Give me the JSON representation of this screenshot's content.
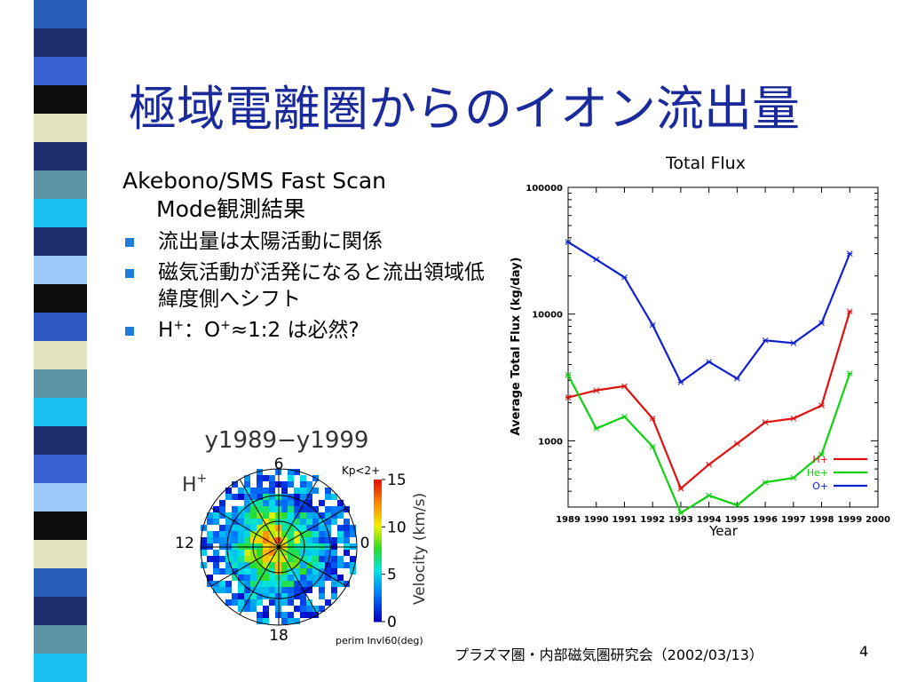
{
  "slide": {
    "title": "極域電離圏からのイオン流出量",
    "body_lead_1": "Akebono/SMS Fast Scan",
    "body_lead_2": "Mode観測結果",
    "bullets": [
      "流出量は太陽活動に関係",
      "磁気活動が活発になると流出領域低緯度側へシフト"
    ],
    "bullet3": {
      "p1": "H",
      "sup1": "+",
      "p2": "：O",
      "sup2": "+",
      "p3": "≈1:2 は必然?"
    },
    "footer": "プラズマ圏・内部磁気圏研究会（2002/03/13）",
    "page_number": "4",
    "stripe_colors": [
      "#2a5db8",
      "#1d2f6e",
      "#3a62d3",
      "#0d0d0d",
      "#e3e3c0",
      "#1d2f6e",
      "#5a93a6",
      "#18bff0",
      "#1d2f6e",
      "#9fc9f8",
      "#0d0d0d",
      "#2f59c2",
      "#e3e3c0",
      "#5a93a6",
      "#18bff0",
      "#1d2f6e",
      "#3a62d3",
      "#9fc9f8",
      "#0d0d0d",
      "#e3e3c0",
      "#2a5db8",
      "#1d2f6e",
      "#5a93a6",
      "#18bff0"
    ]
  },
  "chart_data": [
    {
      "type": "line",
      "title": "Total Flux",
      "xlabel": "Year",
      "ylabel": "Average Total Flux (kg/day)",
      "y_scale": "log",
      "ylim": [
        300,
        100000
      ],
      "xlim": [
        1989,
        2000
      ],
      "x_ticks": [
        "1989",
        "1990",
        "1991",
        "1992",
        "1993",
        "1994",
        "1995",
        "1996",
        "1997",
        "1998",
        "1999",
        "2000"
      ],
      "y_ticks": [
        "100000",
        "10000",
        "1000"
      ],
      "x": [
        1989,
        1990,
        1991,
        1992,
        1993,
        1994,
        1995,
        1996,
        1997,
        1998,
        1999
      ],
      "series": [
        {
          "name": "H+",
          "color": "#e01010",
          "values": [
            2200,
            2500,
            2700,
            1500,
            420,
            650,
            950,
            1400,
            1500,
            1900,
            10500
          ]
        },
        {
          "name": "He+",
          "color": "#10d010",
          "values": [
            3300,
            1250,
            1550,
            900,
            270,
            370,
            310,
            470,
            510,
            780,
            3400
          ]
        },
        {
          "name": "O+",
          "color": "#1020d0",
          "values": [
            37000,
            27000,
            19500,
            8200,
            2900,
            4200,
            3100,
            6200,
            5900,
            8500,
            30000
          ]
        }
      ],
      "legend_position": "bottom-right"
    },
    {
      "type": "heatmap",
      "title": "y1989−y1999",
      "species_label": "H+",
      "species_base": "H",
      "species_sup": "+",
      "kp_label": "Kp<2+",
      "mlt_labels": {
        "top": "6",
        "left": "12",
        "right": "0",
        "bottom": "18"
      },
      "xlabel": "perim Invl60(deg)",
      "colorbar_label": "Velocity (km/s)",
      "colorbar_ticks": [
        "15",
        "10",
        "5",
        "0"
      ],
      "colorbar_range": [
        0,
        15
      ]
    }
  ]
}
